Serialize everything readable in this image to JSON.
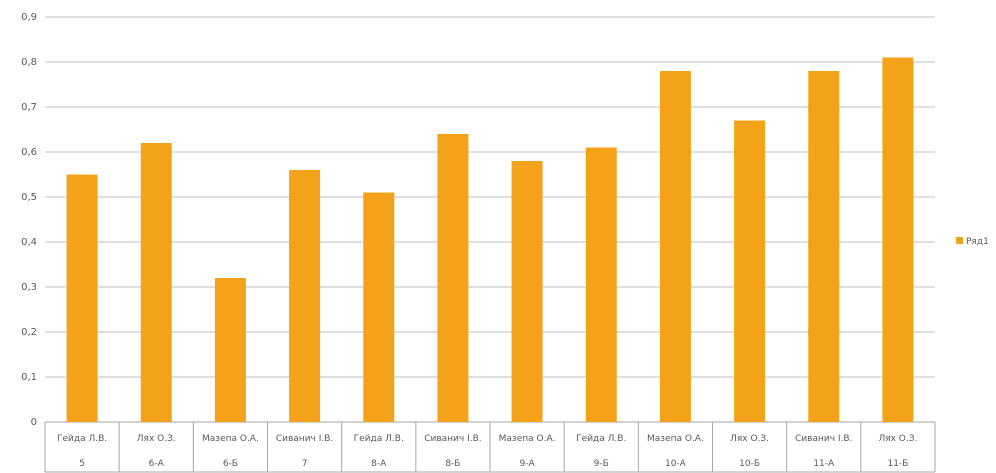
{
  "chart_data": {
    "type": "bar",
    "categories": [
      [
        "Гейда Л.В.",
        "5"
      ],
      [
        "Лях О.З.",
        "6-А"
      ],
      [
        "Мазепа О.А.",
        "6-Б"
      ],
      [
        "Сиванич І.В.",
        "7"
      ],
      [
        "Гейда Л.В.",
        "8-А"
      ],
      [
        "Сиванич І.В.",
        "8-Б"
      ],
      [
        "Мазепа О.А.",
        "9-А"
      ],
      [
        "Гейда Л.В.",
        "9-Б"
      ],
      [
        "Мазепа О.А.",
        "10-А"
      ],
      [
        "Лях О.З.",
        "10-Б"
      ],
      [
        "Сиванич І.В.",
        "11-А"
      ],
      [
        "Лях О.З.",
        "11-Б"
      ]
    ],
    "series": [
      {
        "name": "Ряд1",
        "values": [
          0.55,
          0.62,
          0.32,
          0.56,
          0.51,
          0.64,
          0.58,
          0.61,
          0.78,
          0.67,
          0.78,
          0.81
        ]
      }
    ],
    "yticks": [
      "0",
      "0,1",
      "0,2",
      "0,3",
      "0,4",
      "0,5",
      "0,6",
      "0,7",
      "0,8",
      "0,9"
    ],
    "ylim": [
      0,
      0.9
    ],
    "grid": true,
    "legend_position": "right",
    "colors": {
      "bar": "#F5A21B",
      "grid": "#bfbfbf",
      "axis": "#a6a6a6"
    }
  }
}
